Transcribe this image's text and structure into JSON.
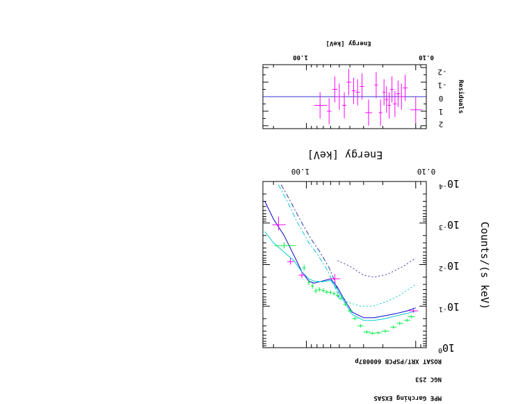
{
  "header_lines": [
    "MPE Garching EXSAS",
    "NGC 253",
    "ROSAT XRT/PSPCB 600087p"
  ],
  "colors": {
    "data_spectrum": "#ff00ff",
    "data_model_points": "#00ee44",
    "model_total": "#0000cc",
    "model_component": "#00cccc",
    "residual_zero": "#3333cc"
  },
  "chart_data": [
    {
      "type": "scatter",
      "xlabel": "Energy [keV]",
      "ylabel": "Counts/(s keV)",
      "x_scale": "log",
      "y_scale": "log",
      "xlim": [
        0.08,
        2.5
      ],
      "ylim": [
        0.0001,
        1
      ],
      "x_tick_labels": [
        "0.10",
        "1.00"
      ],
      "y_tick_labels": [
        "10^0",
        "10^-1",
        "10^-2",
        "10^-3",
        "10^-4"
      ],
      "orientation": "rotated 180 degrees",
      "series": [
        {
          "role": "observed",
          "color": "#ff00ff",
          "points": [
            {
              "x": 0.105,
              "y": 0.13,
              "xerr": 0.01,
              "yerr": 0.014
            },
            {
              "x": 1.1,
              "y": 0.018,
              "xerr": 0.08,
              "yerr": 0.003
            },
            {
              "x": 1.4,
              "y": 0.0085,
              "xerr": 0.1,
              "yerr": 0.0015
            },
            {
              "x": 1.8,
              "y": 0.0011,
              "xerr": 0.25,
              "yerr": 0.0004
            },
            {
              "x": 0.55,
              "y": 0.022,
              "xerr": 0.06,
              "yerr": 0.005
            }
          ]
        },
        {
          "role": "model-points",
          "color": "#00ee44",
          "points": [
            {
              "x": 1.6,
              "y": 0.0035,
              "xerr": 0.35,
              "yerr": 0.0006
            },
            {
              "x": 1.05,
              "y": 0.012,
              "xerr": 0.04,
              "yerr": 0.002
            },
            {
              "x": 0.95,
              "y": 0.027,
              "xerr": 0.03,
              "yerr": 0.004
            },
            {
              "x": 0.88,
              "y": 0.033,
              "xerr": 0.03,
              "yerr": 0.005
            },
            {
              "x": 0.82,
              "y": 0.043,
              "xerr": 0.03,
              "yerr": 0.006
            },
            {
              "x": 0.76,
              "y": 0.04,
              "xerr": 0.03,
              "yerr": 0.005
            },
            {
              "x": 0.7,
              "y": 0.042,
              "xerr": 0.03,
              "yerr": 0.005
            },
            {
              "x": 0.65,
              "y": 0.046,
              "xerr": 0.03,
              "yerr": 0.005
            },
            {
              "x": 0.6,
              "y": 0.047,
              "xerr": 0.02,
              "yerr": 0.005
            },
            {
              "x": 0.56,
              "y": 0.05,
              "xerr": 0.02,
              "yerr": 0.005
            },
            {
              "x": 0.52,
              "y": 0.055,
              "xerr": 0.02,
              "yerr": 0.006
            },
            {
              "x": 0.48,
              "y": 0.065,
              "xerr": 0.02,
              "yerr": 0.007
            },
            {
              "x": 0.44,
              "y": 0.09,
              "xerr": 0.02,
              "yerr": 0.01
            },
            {
              "x": 0.4,
              "y": 0.13,
              "xerr": 0.02,
              "yerr": 0.014
            },
            {
              "x": 0.36,
              "y": 0.2,
              "xerr": 0.02,
              "yerr": 0.02
            },
            {
              "x": 0.32,
              "y": 0.3,
              "xerr": 0.02,
              "yerr": 0.03
            },
            {
              "x": 0.28,
              "y": 0.42,
              "xerr": 0.02,
              "yerr": 0.04
            },
            {
              "x": 0.25,
              "y": 0.45,
              "xerr": 0.015,
              "yerr": 0.04
            },
            {
              "x": 0.22,
              "y": 0.44,
              "xerr": 0.015,
              "yerr": 0.04
            },
            {
              "x": 0.19,
              "y": 0.4,
              "xerr": 0.015,
              "yerr": 0.04
            },
            {
              "x": 0.16,
              "y": 0.32,
              "xerr": 0.01,
              "yerr": 0.03
            },
            {
              "x": 0.14,
              "y": 0.26,
              "xerr": 0.01,
              "yerr": 0.025
            },
            {
              "x": 0.12,
              "y": 0.22,
              "xerr": 0.008,
              "yerr": 0.02
            },
            {
              "x": 0.11,
              "y": 0.18,
              "xerr": 0.008,
              "yerr": 0.018
            }
          ]
        }
      ],
      "model_curves": [
        {
          "role": "total",
          "color": "#0000cc",
          "dash": "solid",
          "points": [
            [
              2.4,
              0.0003
            ],
            [
              2.0,
              0.0008
            ],
            [
              1.6,
              0.002
            ],
            [
              1.3,
              0.006
            ],
            [
              1.1,
              0.015
            ],
            [
              0.95,
              0.025
            ],
            [
              0.85,
              0.028
            ],
            [
              0.72,
              0.025
            ],
            [
              0.6,
              0.022
            ],
            [
              0.52,
              0.035
            ],
            [
              0.45,
              0.07
            ],
            [
              0.38,
              0.14
            ],
            [
              0.3,
              0.19
            ],
            [
              0.24,
              0.19
            ],
            [
              0.19,
              0.17
            ],
            [
              0.15,
              0.15
            ],
            [
              0.12,
              0.13
            ],
            [
              0.1,
              0.11
            ]
          ]
        },
        {
          "role": "component",
          "color": "#3333aa",
          "dash": "dashdot",
          "points": [
            [
              1.7,
              0.00012
            ],
            [
              1.4,
              0.0003
            ],
            [
              1.1,
              0.001
            ],
            [
              0.9,
              0.0025
            ],
            [
              0.75,
              0.005
            ],
            [
              0.62,
              0.012
            ],
            [
              0.55,
              0.025
            ],
            [
              0.5,
              0.06
            ]
          ]
        },
        {
          "role": "component",
          "color": "#00cccc",
          "dash": "dashdot",
          "points": [
            [
              1.8,
              0.00012
            ],
            [
              1.5,
              0.0003
            ],
            [
              1.2,
              0.001
            ],
            [
              0.95,
              0.003
            ],
            [
              0.78,
              0.006
            ],
            [
              0.64,
              0.014
            ],
            [
              0.56,
              0.03
            ],
            [
              0.5,
              0.07
            ]
          ]
        },
        {
          "role": "component",
          "color": "#3333aa",
          "dash": "dotted",
          "points": [
            [
              0.52,
              0.008
            ],
            [
              0.4,
              0.011
            ],
            [
              0.3,
              0.018
            ],
            [
              0.24,
              0.02
            ],
            [
              0.18,
              0.017
            ],
            [
              0.13,
              0.011
            ],
            [
              0.1,
              0.007
            ]
          ]
        },
        {
          "role": "component",
          "color": "#00cccc",
          "dash": "dotted",
          "points": [
            [
              0.5,
              0.05
            ],
            [
              0.42,
              0.08
            ],
            [
              0.32,
              0.1
            ],
            [
              0.25,
              0.1
            ],
            [
              0.19,
              0.08
            ],
            [
              0.14,
              0.055
            ],
            [
              0.1,
              0.03
            ]
          ]
        },
        {
          "role": "component",
          "color": "#00cccc",
          "dash": "solid",
          "points": [
            [
              2.4,
              0.0016
            ],
            [
              2.0,
              0.003
            ],
            [
              1.6,
              0.005
            ],
            [
              1.3,
              0.008
            ],
            [
              1.1,
              0.015
            ],
            [
              0.95,
              0.022
            ],
            [
              0.85,
              0.025
            ],
            [
              0.72,
              0.026
            ],
            [
              0.6,
              0.024
            ],
            [
              0.52,
              0.04
            ],
            [
              0.45,
              0.08
            ],
            [
              0.38,
              0.16
            ],
            [
              0.3,
              0.22
            ],
            [
              0.24,
              0.22
            ],
            [
              0.19,
              0.2
            ],
            [
              0.15,
              0.17
            ],
            [
              0.12,
              0.15
            ],
            [
              0.1,
              0.13
            ]
          ]
        }
      ]
    },
    {
      "type": "scatter",
      "xlabel": "Energy [keV]",
      "ylabel": "Residuals",
      "x_scale": "log",
      "xlim": [
        0.08,
        2.5
      ],
      "ylim": [
        -2.2,
        2.2
      ],
      "x_tick_labels": [
        "0.10",
        "1.00"
      ],
      "y_tick_labels": [
        "2",
        "1",
        "0",
        "-1",
        "-2"
      ],
      "orientation": "rotated 180 degrees",
      "points": [
        {
          "x": 0.1,
          "y": 0.9,
          "xerr": 0.012,
          "yerr": 0.9
        },
        {
          "x": 0.125,
          "y": -0.6,
          "xerr": 0.006,
          "yerr": 0.9
        },
        {
          "x": 0.135,
          "y": 0.0,
          "xerr": 0.006,
          "yerr": 0.9
        },
        {
          "x": 0.145,
          "y": -0.2,
          "xerr": 0.006,
          "yerr": 0.9
        },
        {
          "x": 0.155,
          "y": 0.5,
          "xerr": 0.006,
          "yerr": 0.9
        },
        {
          "x": 0.165,
          "y": -0.5,
          "xerr": 0.006,
          "yerr": 0.9
        },
        {
          "x": 0.175,
          "y": 0.6,
          "xerr": 0.006,
          "yerr": 0.9
        },
        {
          "x": 0.185,
          "y": 0.2,
          "xerr": 0.006,
          "yerr": 0.9
        },
        {
          "x": 0.195,
          "y": -0.3,
          "xerr": 0.006,
          "yerr": 0.9
        },
        {
          "x": 0.21,
          "y": 1.1,
          "xerr": 0.008,
          "yerr": 0.9
        },
        {
          "x": 0.23,
          "y": -0.8,
          "xerr": 0.008,
          "yerr": 0.9
        },
        {
          "x": 0.27,
          "y": 1.1,
          "xerr": 0.02,
          "yerr": 0.9
        },
        {
          "x": 0.31,
          "y": -0.7,
          "xerr": 0.015,
          "yerr": 0.9
        },
        {
          "x": 0.34,
          "y": -0.3,
          "xerr": 0.015,
          "yerr": 0.9
        },
        {
          "x": 0.37,
          "y": -0.4,
          "xerr": 0.015,
          "yerr": 0.9
        },
        {
          "x": 0.41,
          "y": -1.0,
          "xerr": 0.02,
          "yerr": 0.9
        },
        {
          "x": 0.45,
          "y": 0.6,
          "xerr": 0.02,
          "yerr": 0.9
        },
        {
          "x": 0.5,
          "y": 0.0,
          "xerr": 0.02,
          "yerr": 0.9
        },
        {
          "x": 0.55,
          "y": -0.5,
          "xerr": 0.03,
          "yerr": 0.9
        },
        {
          "x": 0.62,
          "y": 1.0,
          "xerr": 0.03,
          "yerr": 0.9
        },
        {
          "x": 0.75,
          "y": 0.6,
          "xerr": 0.1,
          "yerr": 0.9
        }
      ]
    }
  ]
}
